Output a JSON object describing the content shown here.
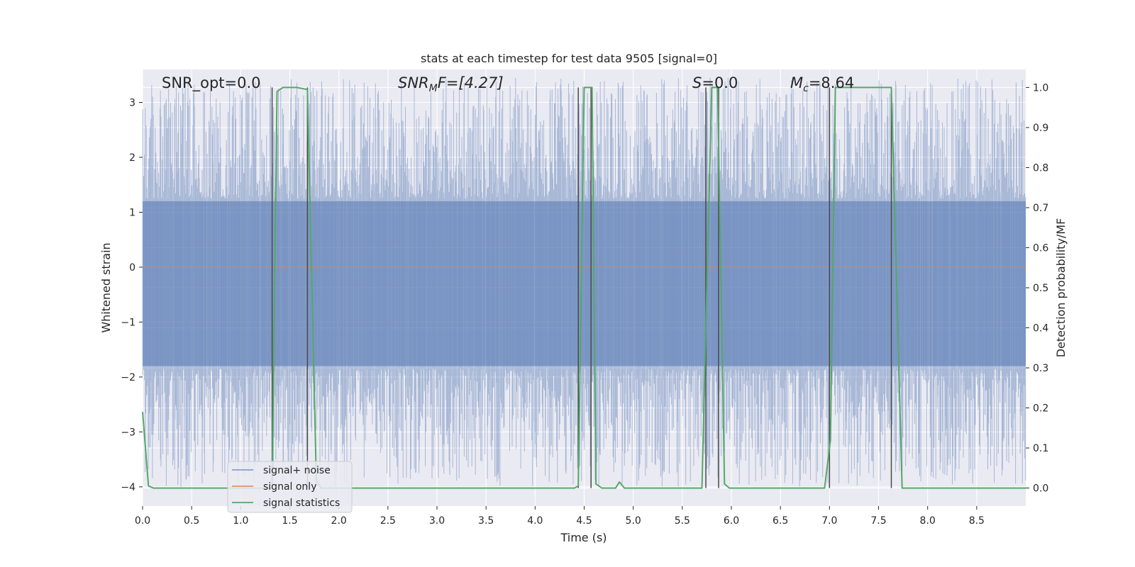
{
  "chart_data": {
    "type": "line",
    "title": "stats at each timestep for test data 9505 [signal=0]",
    "xlabel": "Time (s)",
    "ylabel": "Whitened strain",
    "y2label": "Detection probability/MF",
    "xlim": [
      0,
      9.0
    ],
    "ylim": [
      -4.35,
      3.6
    ],
    "y2lim": [
      -0.045,
      1.045
    ],
    "grid": true,
    "legend_position": "lower-left",
    "x_ticks": [
      "0.0",
      "0.5",
      "1.0",
      "1.5",
      "2.0",
      "2.5",
      "3.0",
      "3.5",
      "4.0",
      "4.5",
      "5.0",
      "5.5",
      "6.0",
      "6.5",
      "7.0",
      "7.5",
      "8.0",
      "8.5"
    ],
    "y_ticks": [
      "3",
      "2",
      "1",
      "0",
      "−1",
      "−2",
      "−3",
      "−4"
    ],
    "y2_ticks": [
      "1.0",
      "0.9",
      "0.8",
      "0.7",
      "0.6",
      "0.5",
      "0.4",
      "0.3",
      "0.2",
      "0.1",
      "0.0"
    ],
    "annotations": {
      "snr_opt": "SNR_opt=0.0",
      "snr_mf_sym": "SNR",
      "snr_mf_sub": "M",
      "snr_mf_rest": "F=[4.27]",
      "s_sym": "S",
      "s_rest": "=0.0",
      "mc_sym": "M",
      "mc_sub": "c",
      "mc_rest": "=8.64"
    },
    "colors": {
      "background": "#eaeaf2",
      "grid": "#ffffff",
      "noise": "#4c72b0",
      "signal": "#dd8452",
      "stats": "#55a868",
      "trigger_lines": "#4a4a4a"
    },
    "trigger_lines_x": [
      1.32,
      1.68,
      4.44,
      4.57,
      5.74,
      5.87,
      7.0,
      7.63
    ],
    "series": [
      {
        "name": "signal+ noise",
        "envelope_y_range": [
          -4.0,
          3.45
        ],
        "dense_band_y": [
          -1.8,
          1.2
        ]
      },
      {
        "name": "signal only",
        "x": [
          0.0,
          9.0
        ],
        "y": [
          0.0,
          0.0
        ]
      },
      {
        "name": "signal statistics",
        "axis": "right",
        "x": [
          0.0,
          0.06,
          0.11,
          0.2,
          1.32,
          1.37,
          1.43,
          1.57,
          1.68,
          1.77,
          1.82,
          4.4,
          4.44,
          4.5,
          4.58,
          4.62,
          4.68,
          4.82,
          4.86,
          4.91,
          4.96,
          5.02,
          5.7,
          5.8,
          5.86,
          5.93,
          5.98,
          6.95,
          7.01,
          7.06,
          7.63,
          7.74,
          7.79,
          9.0
        ],
        "y": [
          0.19,
          0.005,
          0.0,
          0.0,
          0.0,
          0.99,
          1.0,
          1.0,
          0.995,
          0.02,
          0.0,
          0.0,
          0.005,
          1.0,
          1.0,
          0.01,
          0.0,
          0.0,
          0.015,
          0.0,
          0.0,
          0.0,
          0.0,
          1.0,
          1.0,
          0.01,
          0.0,
          0.0,
          0.12,
          1.0,
          1.0,
          0.0,
          0.0,
          0.0
        ]
      }
    ]
  }
}
